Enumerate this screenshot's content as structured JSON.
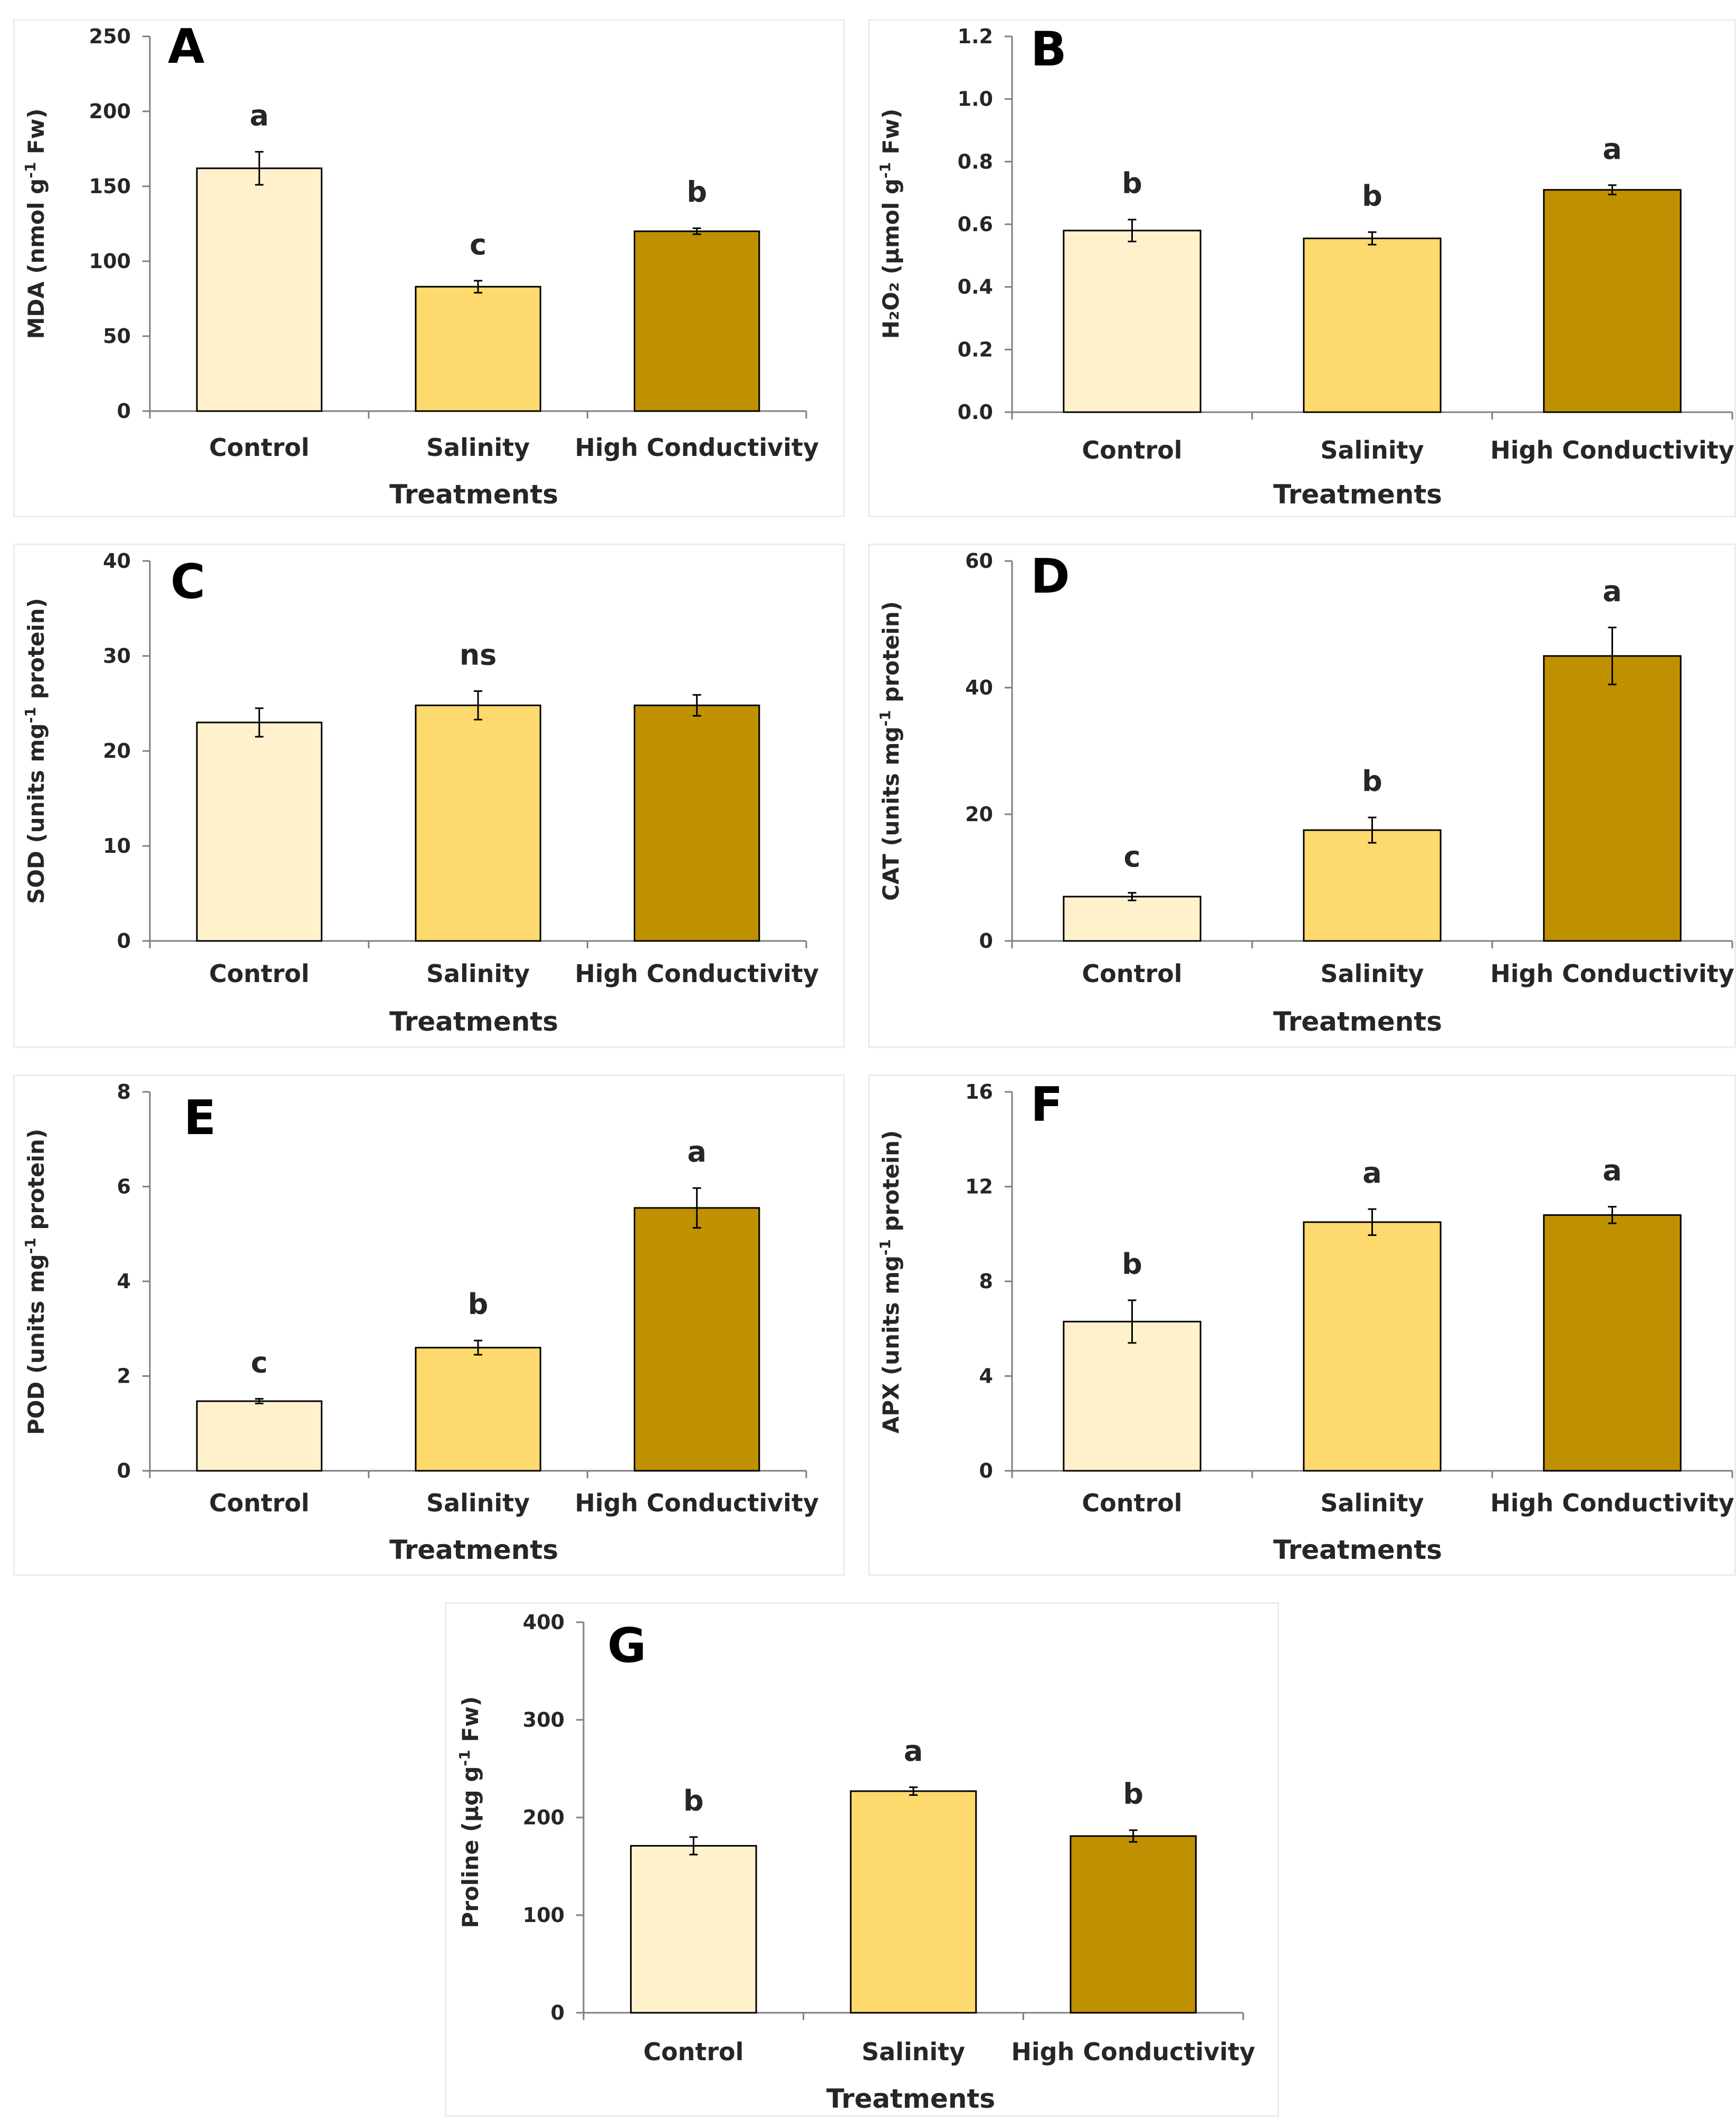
{
  "figure": {
    "categories": [
      "Control",
      "Salinity",
      "High Conductivity"
    ],
    "colors": [
      "#fff1cc",
      "#fed96d",
      "#bf9000"
    ],
    "bar_outline": "#000000",
    "axis_color": "#7f7f7f"
  },
  "chart_data": [
    {
      "type": "bar",
      "panel": "A",
      "title": "",
      "xlabel": "Treatments",
      "ylabel": "MDA (nmol g-1 Fw)",
      "ylabel_parts": {
        "pre": "MDA (nmol g",
        "sup": "-1",
        "post": " Fw)"
      },
      "categories": [
        "Control",
        "Salinity",
        "High Conductivity"
      ],
      "values": [
        162,
        83,
        120
      ],
      "errors": [
        11,
        4,
        2
      ],
      "letters": [
        "a",
        "c",
        "b"
      ],
      "ylim": [
        0,
        250
      ],
      "yticks": [
        0,
        50,
        100,
        150,
        200,
        250
      ],
      "ytick_labels": [
        "0",
        "50",
        "100",
        "150",
        "200",
        "250"
      ]
    },
    {
      "type": "bar",
      "panel": "B",
      "title": "",
      "xlabel": "Treatments",
      "ylabel": "H2O2 (µmol g-1 Fw)",
      "ylabel_parts": {
        "pre": "H₂O₂ (µmol g",
        "sup": "-1",
        "post": " Fw)"
      },
      "categories": [
        "Control",
        "Salinity",
        "High Conductivity"
      ],
      "values": [
        0.58,
        0.555,
        0.71
      ],
      "errors": [
        0.035,
        0.02,
        0.015
      ],
      "letters": [
        "b",
        "b",
        "a"
      ],
      "ylim": [
        0,
        1.2
      ],
      "yticks": [
        0,
        0.2,
        0.4,
        0.6,
        0.8,
        1.0,
        1.2
      ],
      "ytick_labels": [
        "0.0",
        "0.2",
        "0.4",
        "0.6",
        "0.8",
        "1.0",
        "1.2"
      ]
    },
    {
      "type": "bar",
      "panel": "C",
      "title": "",
      "xlabel": "Treatments",
      "ylabel": "SOD (units mg-1 protein)",
      "ylabel_parts": {
        "pre": "SOD (units mg",
        "sup": "-1",
        "post": " protein)"
      },
      "categories": [
        "Control",
        "Salinity",
        "High Conductivity"
      ],
      "values": [
        23.0,
        24.8,
        24.8
      ],
      "errors": [
        1.5,
        1.5,
        1.1
      ],
      "letters": [
        "",
        "ns",
        ""
      ],
      "ylim": [
        0,
        40
      ],
      "yticks": [
        0,
        10,
        20,
        30,
        40
      ],
      "ytick_labels": [
        "0",
        "10",
        "20",
        "30",
        "40"
      ]
    },
    {
      "type": "bar",
      "panel": "D",
      "title": "",
      "xlabel": "Treatments",
      "ylabel": "CAT (units mg-1 protein)",
      "ylabel_parts": {
        "pre": "CAT (units mg",
        "sup": "-1",
        "post": " protein)"
      },
      "categories": [
        "Control",
        "Salinity",
        "High Conductivity"
      ],
      "values": [
        7.0,
        17.5,
        45.0
      ],
      "errors": [
        0.6,
        2.0,
        4.5
      ],
      "letters": [
        "c",
        "b",
        "a"
      ],
      "ylim": [
        0,
        60
      ],
      "yticks": [
        0,
        20,
        40,
        60
      ],
      "ytick_labels": [
        "0",
        "20",
        "40",
        "60"
      ]
    },
    {
      "type": "bar",
      "panel": "E",
      "title": "",
      "xlabel": "Treatments",
      "ylabel": "POD (units mg-1 protein)",
      "ylabel_parts": {
        "pre": "POD (units mg",
        "sup": "-1",
        "post": " protein)"
      },
      "categories": [
        "Control",
        "Salinity",
        "High Conductivity"
      ],
      "values": [
        1.47,
        2.6,
        5.55
      ],
      "errors": [
        0.05,
        0.15,
        0.42
      ],
      "letters": [
        "c",
        "b",
        "a"
      ],
      "ylim": [
        0,
        8
      ],
      "yticks": [
        0,
        2,
        4,
        6,
        8
      ],
      "ytick_labels": [
        "0",
        "2",
        "4",
        "6",
        "8"
      ]
    },
    {
      "type": "bar",
      "panel": "F",
      "title": "",
      "xlabel": "Treatments",
      "ylabel": "APX (units mg-1 protein)",
      "ylabel_parts": {
        "pre": "APX (units mg",
        "sup": "-1",
        "post": " protein)"
      },
      "categories": [
        "Control",
        "Salinity",
        "High Conductivity"
      ],
      "values": [
        6.3,
        10.5,
        10.8
      ],
      "errors": [
        0.9,
        0.55,
        0.35
      ],
      "letters": [
        "b",
        "a",
        "a"
      ],
      "ylim": [
        0,
        16
      ],
      "yticks": [
        0,
        4,
        8,
        12,
        16
      ],
      "ytick_labels": [
        "0",
        "4",
        "8",
        "12",
        "16"
      ]
    },
    {
      "type": "bar",
      "panel": "G",
      "title": "",
      "xlabel": "Treatments",
      "ylabel": "Proline (µg g-1 Fw)",
      "ylabel_parts": {
        "pre": "Proline (µg g",
        "sup": "-1",
        "post": " Fw)"
      },
      "categories": [
        "Control",
        "Salinity",
        "High Conductivity"
      ],
      "values": [
        171,
        227,
        181
      ],
      "errors": [
        9,
        4,
        6
      ],
      "letters": [
        "b",
        "a",
        "b"
      ],
      "ylim": [
        0,
        400
      ],
      "yticks": [
        0,
        100,
        200,
        300,
        400
      ],
      "ytick_labels": [
        "0",
        "100",
        "200",
        "300",
        "400"
      ]
    }
  ]
}
